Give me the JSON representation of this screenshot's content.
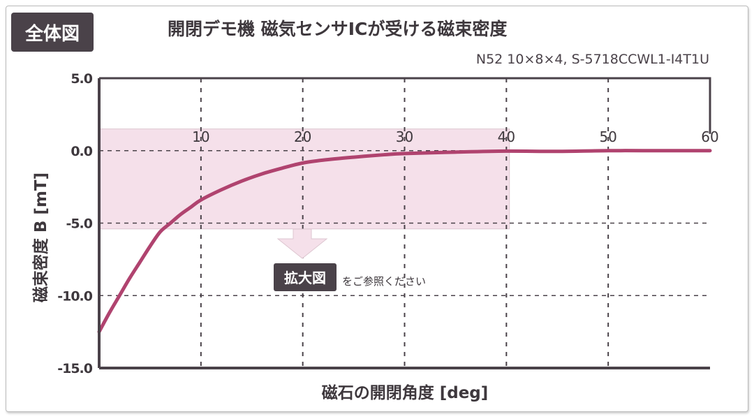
{
  "badge": "全体図",
  "title": "開閉デモ機 磁気センサICが受ける磁束密度",
  "subtitle": "N52 10×8×4, S-5718CCWL1-I4T1U",
  "zoom_note": {
    "badge": "拡大図",
    "text": "をご参照ください"
  },
  "colors": {
    "line": "#b0436f",
    "highlight": "#f5e0ea",
    "axis": "#4a4249"
  },
  "chart_data": {
    "type": "line",
    "title": "開閉デモ機 磁気センサICが受ける磁束密度",
    "xlabel": "磁石の開閉角度 [deg]",
    "ylabel": "磁束密度 B [mT]",
    "xlim": [
      0,
      60
    ],
    "ylim": [
      -15,
      5
    ],
    "xticks": [
      "10",
      "20",
      "30",
      "40",
      "50",
      "60"
    ],
    "xtick_values": [
      10,
      20,
      30,
      40,
      50,
      60
    ],
    "yticks": [
      "5.0",
      "0.0",
      "-5.0",
      "-10.0",
      "-15.0"
    ],
    "ytick_values": [
      5,
      0,
      -5,
      -10,
      -15
    ],
    "grid": true,
    "highlight_region": {
      "x": [
        0,
        40.3
      ],
      "y": [
        -5.4,
        1.5
      ]
    },
    "series": [
      {
        "name": "B",
        "x": [
          0,
          1,
          2,
          3,
          4,
          5,
          6,
          7,
          8,
          9,
          10,
          12,
          14,
          16,
          18,
          20,
          22,
          25,
          28,
          30,
          35,
          40,
          45,
          50,
          55,
          60
        ],
        "y": [
          -12.5,
          -11.2,
          -10.0,
          -8.8,
          -7.7,
          -6.6,
          -5.6,
          -5.0,
          -4.4,
          -3.9,
          -3.4,
          -2.7,
          -2.1,
          -1.6,
          -1.2,
          -0.85,
          -0.65,
          -0.45,
          -0.28,
          -0.2,
          -0.1,
          -0.03,
          -0.05,
          0,
          0,
          0
        ]
      }
    ]
  }
}
